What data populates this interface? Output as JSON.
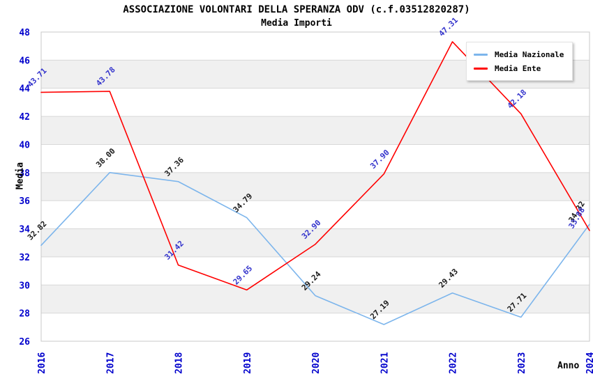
{
  "title": "ASSOCIAZIONE VOLONTARI DELLA SPERANZA ODV (c.f.03512820287)",
  "subtitle": "Media Importi",
  "chart_data": {
    "type": "line",
    "categories": [
      "2016",
      "2017",
      "2018",
      "2019",
      "2020",
      "2021",
      "2022",
      "2023",
      "2024"
    ],
    "series": [
      {
        "name": "Media Nazionale",
        "color": "#7cb5ec",
        "label_color": "#1a1a1a",
        "values": [
          32.82,
          38.0,
          37.36,
          34.79,
          29.24,
          27.19,
          29.43,
          27.71,
          34.32
        ]
      },
      {
        "name": "Media Ente",
        "color": "#ff0000",
        "label_color": "#3333cc",
        "values": [
          43.71,
          43.78,
          31.42,
          29.65,
          32.9,
          37.9,
          47.31,
          42.18,
          33.88
        ]
      }
    ],
    "xlabel": "Anno",
    "ylabel": "Media",
    "ylim": [
      26,
      48
    ],
    "ytick_step": 2,
    "yticks": [
      26,
      28,
      30,
      32,
      34,
      36,
      38,
      40,
      42,
      44,
      46,
      48
    ],
    "value_label_decimals": 2,
    "legend_position": "top-right",
    "grid_bands": true,
    "axis_tick_color": "#0000cc",
    "band_color": "#f0f0f0",
    "grid_color": "#d8d8d8",
    "border_color": "#c8c8c8",
    "background_color": "#ffffff"
  }
}
